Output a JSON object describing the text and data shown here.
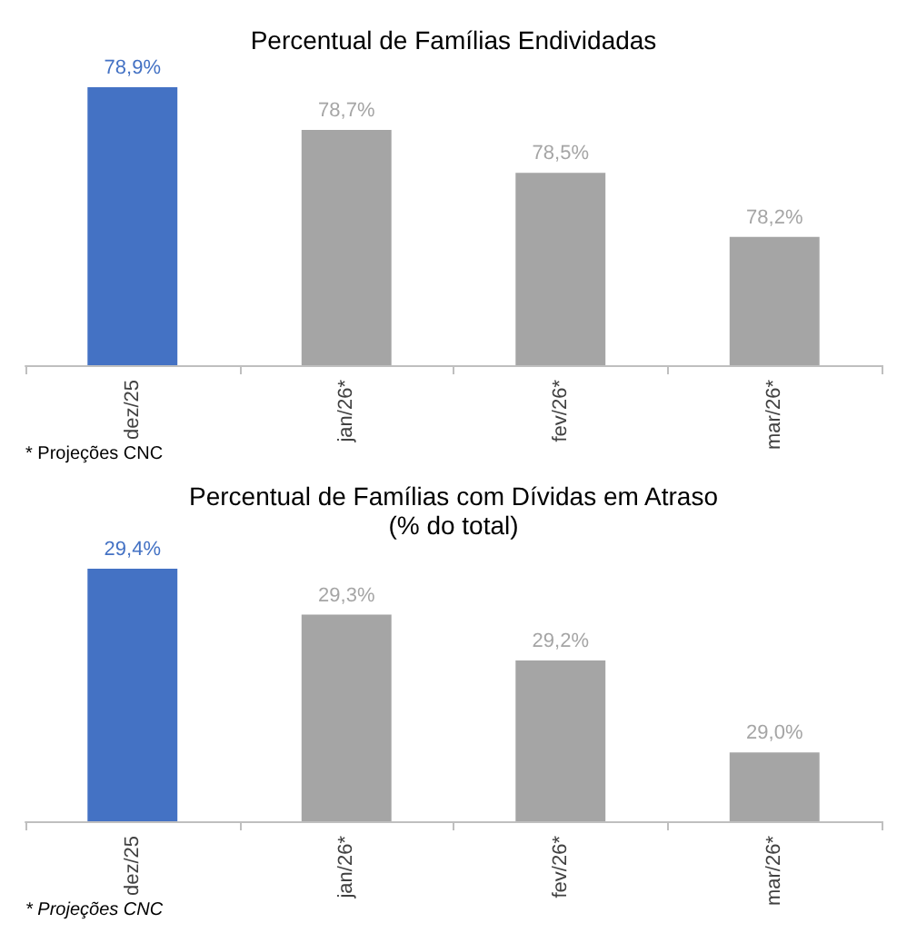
{
  "chart_data": [
    {
      "type": "bar",
      "title": "Percentual de Famílias Endividadas",
      "categories": [
        "dez/25",
        "jan/26*",
        "fev/26*",
        "mar/26*"
      ],
      "values": [
        78.9,
        78.7,
        78.5,
        78.2
      ],
      "colors": [
        "#4472c4",
        "#a5a5a5",
        "#a5a5a5",
        "#a5a5a5"
      ],
      "ylim": [
        77.6,
        78.9
      ],
      "data_labels": true,
      "value_labels": [
        "78,9%",
        "78,7%",
        "78,5%",
        "78,2%"
      ],
      "annotations": [
        "* Projeções CNC"
      ],
      "grid": false
    },
    {
      "type": "bar",
      "title": "Percentual de Famílias com Dívidas em Atraso",
      "subtitle": "(% do total)",
      "categories": [
        "dez/25",
        "jan/26*",
        "fev/26*",
        "mar/26*"
      ],
      "values": [
        29.4,
        29.3,
        29.2,
        29.0
      ],
      "colors": [
        "#4472c4",
        "#a5a5a5",
        "#a5a5a5",
        "#a5a5a5"
      ],
      "ylim": [
        28.85,
        29.4
      ],
      "data_labels": true,
      "value_labels": [
        "29,4%",
        "29,3%",
        "29,2%",
        "29,0%"
      ],
      "annotations": [
        "* Projeções CNC"
      ],
      "grid": false
    }
  ]
}
